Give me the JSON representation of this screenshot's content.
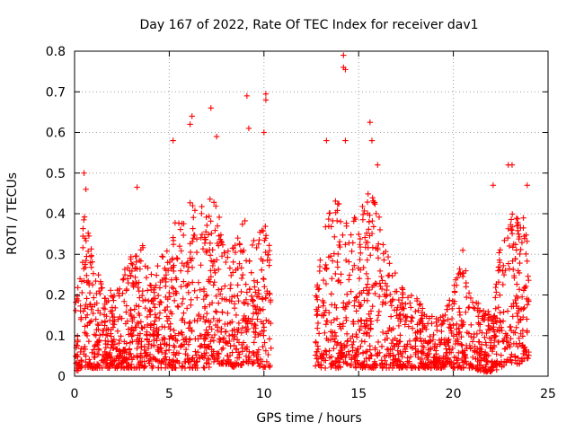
{
  "chart_data": {
    "type": "scatter",
    "title": "Day 167 of 2022, Rate Of TEC Index for receiver dav1",
    "xlabel": "GPS time / hours",
    "ylabel": "ROTI / TECUs",
    "xlim": [
      0,
      25
    ],
    "ylim": [
      0,
      0.8
    ],
    "xticks": [
      0,
      5,
      10,
      15,
      20,
      25
    ],
    "yticks": [
      0,
      0.1,
      0.2,
      0.3,
      0.4,
      0.5,
      0.6,
      0.7,
      0.8
    ],
    "xtick_labels": [
      "0",
      "5",
      "10",
      "15",
      "20",
      "25"
    ],
    "ytick_labels": [
      "0",
      "0.1",
      "0.2",
      "0.3",
      "0.4",
      "0.5",
      "0.6",
      "0.7",
      "0.8"
    ],
    "grid": true,
    "marker": "+",
    "color": "#ff0000",
    "data_gaps_hours": [
      [
        10.4,
        12.7
      ]
    ],
    "notable_points": [
      {
        "x": 0.5,
        "y": 0.5
      },
      {
        "x": 0.6,
        "y": 0.46
      },
      {
        "x": 3.3,
        "y": 0.465
      },
      {
        "x": 5.2,
        "y": 0.58
      },
      {
        "x": 6.2,
        "y": 0.64
      },
      {
        "x": 6.1,
        "y": 0.62
      },
      {
        "x": 7.2,
        "y": 0.66
      },
      {
        "x": 7.5,
        "y": 0.59
      },
      {
        "x": 9.1,
        "y": 0.69
      },
      {
        "x": 9.2,
        "y": 0.61
      },
      {
        "x": 10.1,
        "y": 0.695
      },
      {
        "x": 10.1,
        "y": 0.68
      },
      {
        "x": 10.0,
        "y": 0.6
      },
      {
        "x": 13.3,
        "y": 0.58
      },
      {
        "x": 14.2,
        "y": 0.79
      },
      {
        "x": 14.2,
        "y": 0.76
      },
      {
        "x": 14.3,
        "y": 0.755
      },
      {
        "x": 14.3,
        "y": 0.58
      },
      {
        "x": 15.6,
        "y": 0.625
      },
      {
        "x": 15.7,
        "y": 0.58
      },
      {
        "x": 16.0,
        "y": 0.52
      },
      {
        "x": 20.5,
        "y": 0.31
      },
      {
        "x": 22.9,
        "y": 0.52
      },
      {
        "x": 23.1,
        "y": 0.52
      },
      {
        "x": 23.9,
        "y": 0.47
      },
      {
        "x": 22.1,
        "y": 0.47
      }
    ],
    "envelope": {
      "hours": [
        0,
        0.5,
        1,
        1.5,
        2,
        2.5,
        3,
        3.5,
        4,
        4.5,
        5,
        5.5,
        6,
        6.5,
        7,
        7.5,
        8,
        8.5,
        9,
        9.5,
        10,
        10.4,
        12.7,
        13,
        13.5,
        14,
        14.5,
        15,
        15.5,
        16,
        16.5,
        17,
        17.5,
        18,
        18.5,
        19,
        19.5,
        20,
        20.5,
        21,
        21.5,
        22,
        22.5,
        23,
        23.5,
        24
      ],
      "upper": [
        0.18,
        0.4,
        0.3,
        0.22,
        0.22,
        0.25,
        0.3,
        0.34,
        0.25,
        0.3,
        0.35,
        0.4,
        0.45,
        0.42,
        0.45,
        0.42,
        0.35,
        0.35,
        0.4,
        0.35,
        0.4,
        0.3,
        0.25,
        0.35,
        0.42,
        0.45,
        0.42,
        0.4,
        0.45,
        0.45,
        0.3,
        0.25,
        0.2,
        0.2,
        0.16,
        0.15,
        0.15,
        0.22,
        0.3,
        0.2,
        0.18,
        0.15,
        0.35,
        0.42,
        0.4,
        0.38
      ],
      "lower": [
        0.01,
        0.02,
        0.02,
        0.02,
        0.02,
        0.02,
        0.02,
        0.02,
        0.02,
        0.02,
        0.02,
        0.02,
        0.02,
        0.02,
        0.02,
        0.03,
        0.03,
        0.02,
        0.03,
        0.03,
        0.02,
        0.02,
        0.02,
        0.02,
        0.02,
        0.02,
        0.02,
        0.02,
        0.02,
        0.02,
        0.02,
        0.02,
        0.02,
        0.02,
        0.02,
        0.02,
        0.02,
        0.02,
        0.02,
        0.02,
        0.01,
        0.01,
        0.02,
        0.03,
        0.03,
        0.03
      ]
    },
    "sample_count": 2600
  }
}
